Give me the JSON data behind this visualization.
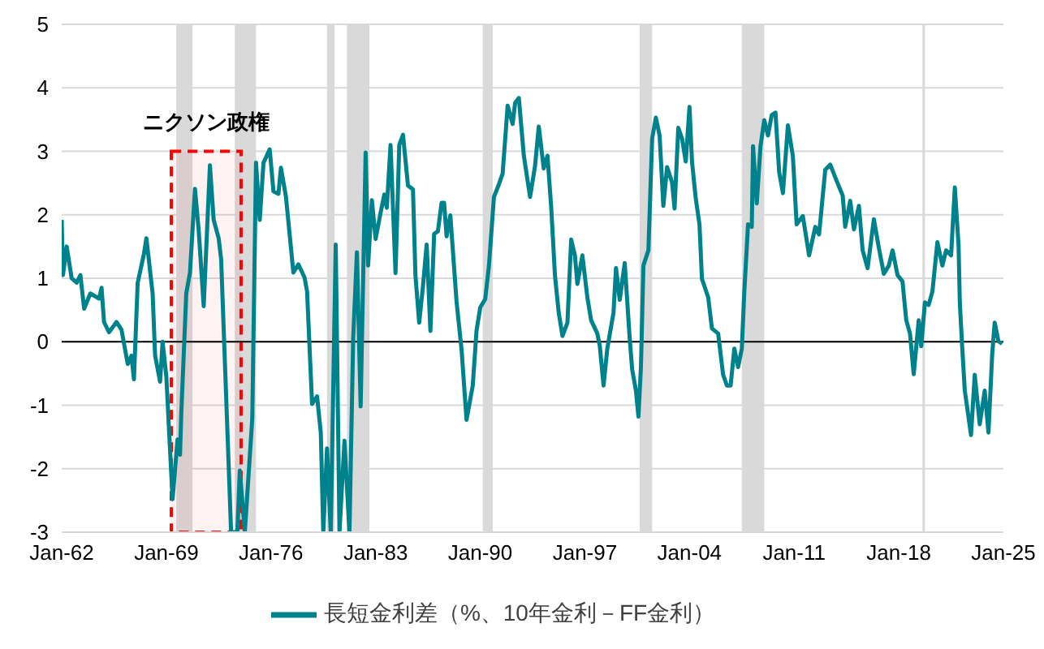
{
  "chart_data": {
    "type": "line",
    "xlim": [
      "1962-01",
      "2025-01"
    ],
    "ylim": [
      -3,
      5
    ],
    "xticks": [
      {
        "value": "1962-01",
        "label": "Jan-62"
      },
      {
        "value": "1969-01",
        "label": "Jan-69"
      },
      {
        "value": "1976-01",
        "label": "Jan-76"
      },
      {
        "value": "1983-01",
        "label": "Jan-83"
      },
      {
        "value": "1990-01",
        "label": "Jan-90"
      },
      {
        "value": "1997-01",
        "label": "Jan-97"
      },
      {
        "value": "2004-01",
        "label": "Jan-04"
      },
      {
        "value": "2011-01",
        "label": "Jan-11"
      },
      {
        "value": "2018-01",
        "label": "Jan-18"
      },
      {
        "value": "2025-01",
        "label": "Jan-25"
      }
    ],
    "yticks": [
      -3,
      -2,
      -1,
      0,
      1,
      2,
      3,
      4,
      5
    ],
    "grid": "y",
    "legend": "bottom",
    "marker": "none",
    "line_style": "solid",
    "ref_lines": [
      {
        "axis": "y",
        "value": 0,
        "color": "#000000"
      }
    ],
    "bands": [
      {
        "axis": "x",
        "from": "1969-09",
        "to": "1970-10",
        "color": "#d9d9d9"
      },
      {
        "axis": "x",
        "from": "1973-08",
        "to": "1975-01",
        "color": "#d9d9d9"
      },
      {
        "axis": "x",
        "from": "1979-10",
        "to": "1980-04",
        "color": "#d9d9d9"
      },
      {
        "axis": "x",
        "from": "1981-02",
        "to": "1982-08",
        "color": "#d9d9d9"
      },
      {
        "axis": "x",
        "from": "1990-03",
        "to": "1990-11",
        "color": "#d9d9d9"
      },
      {
        "axis": "x",
        "from": "2000-09",
        "to": "2001-07",
        "color": "#d9d9d9"
      },
      {
        "axis": "x",
        "from": "2007-07",
        "to": "2009-01",
        "color": "#d9d9d9"
      },
      {
        "axis": "x",
        "from": "2019-08",
        "to": "2019-10",
        "color": "#d9d9d9"
      },
      {
        "axis": "x",
        "from": "1969-05",
        "to": "1974-01",
        "label": "ニクソン政権",
        "color": "#ff0000"
      }
    ],
    "series": [
      {
        "name": "長短金利差（%、10年金利－FF金利）",
        "color": "#00828c",
        "x": [
          "1962-01",
          "1962-02",
          "1962-05",
          "1962-09",
          "1963-01",
          "1963-04",
          "1963-07",
          "1963-12",
          "1964-07",
          "1964-09",
          "1964-11",
          "1965-03",
          "1965-09",
          "1966-01",
          "1966-06",
          "1966-09",
          "1966-11",
          "1967-02",
          "1967-07",
          "1967-09",
          "1968-02",
          "1968-04",
          "1968-08",
          "1968-10",
          "1969-01",
          "1969-06",
          "1969-10",
          "1969-12",
          "1970-01",
          "1970-05",
          "1970-08",
          "1970-12",
          "1971-03",
          "1971-07",
          "1971-12",
          "1972-03",
          "1972-07",
          "1972-09",
          "1973-05",
          "1973-10",
          "1973-12",
          "1974-04",
          "1974-10",
          "1975-01",
          "1975-04",
          "1975-07",
          "1975-12",
          "1976-03",
          "1976-07",
          "1976-09",
          "1977-01",
          "1977-07",
          "1977-11",
          "1978-04",
          "1978-06",
          "1978-10",
          "1979-02",
          "1979-05",
          "1979-07",
          "1979-10",
          "1980-01",
          "1980-05",
          "1980-08",
          "1980-12",
          "1981-04",
          "1981-07",
          "1981-10",
          "1982-01",
          "1982-05",
          "1982-07",
          "1982-10",
          "1983-01",
          "1983-05",
          "1983-08",
          "1983-10",
          "1984-01",
          "1984-05",
          "1984-08",
          "1984-11",
          "1985-03",
          "1985-07",
          "1985-09",
          "1985-12",
          "1986-03",
          "1986-06",
          "1986-09",
          "1986-12",
          "1987-03",
          "1987-06",
          "1987-08",
          "1987-10",
          "1988-01",
          "1988-06",
          "1988-10",
          "1989-02",
          "1989-07",
          "1989-10",
          "1990-01",
          "1990-05",
          "1990-08",
          "1990-12",
          "1991-04",
          "1991-07",
          "1991-11",
          "1992-03",
          "1992-05",
          "1992-08",
          "1992-12",
          "1993-05",
          "1993-09",
          "1993-12",
          "1994-04",
          "1994-07",
          "1994-10",
          "1995-01",
          "1995-04",
          "1995-07",
          "1995-11",
          "1996-02",
          "1996-05",
          "1996-07",
          "1996-11",
          "1997-03",
          "1997-06",
          "1997-11",
          "1998-01",
          "1998-04",
          "1998-07",
          "1998-12",
          "1999-02",
          "1999-05",
          "1999-09",
          "2000-01",
          "2000-03",
          "2000-06",
          "2000-08",
          "2000-10",
          "2000-12",
          "2001-04",
          "2001-07",
          "2001-10",
          "2002-01",
          "2002-04",
          "2002-07",
          "2002-11",
          "2003-01",
          "2003-04",
          "2003-07",
          "2003-10",
          "2004-01",
          "2004-03",
          "2004-06",
          "2004-09",
          "2004-11",
          "2005-04",
          "2005-07",
          "2005-12",
          "2006-04",
          "2006-07",
          "2006-10",
          "2007-01",
          "2007-04",
          "2007-07",
          "2007-09",
          "2007-12",
          "2008-03",
          "2008-04",
          "2008-07",
          "2008-10",
          "2009-01",
          "2009-04",
          "2009-07",
          "2009-10",
          "2010-01",
          "2010-04",
          "2010-08",
          "2010-12",
          "2011-03",
          "2011-08",
          "2012-01",
          "2012-06",
          "2012-09",
          "2013-02",
          "2013-06",
          "2013-10",
          "2014-04",
          "2014-06",
          "2014-10",
          "2015-01",
          "2015-05",
          "2015-08",
          "2015-12",
          "2016-05",
          "2016-09",
          "2017-01",
          "2017-05",
          "2017-08",
          "2017-12",
          "2018-04",
          "2018-07",
          "2018-10",
          "2019-01",
          "2019-05",
          "2019-07",
          "2019-10",
          "2020-01",
          "2020-04",
          "2020-08",
          "2020-12",
          "2021-03",
          "2021-07",
          "2021-10",
          "2022-01",
          "2022-02",
          "2022-04",
          "2022-06",
          "2022-11",
          "2023-02",
          "2023-06",
          "2023-10",
          "2024-01",
          "2024-04",
          "2024-06",
          "2024-09",
          "2024-12"
        ],
        "values": [
          1.92,
          1.05,
          1.5,
          1.0,
          0.93,
          1.05,
          0.52,
          0.76,
          0.68,
          0.85,
          0.31,
          0.15,
          0.31,
          0.19,
          -0.35,
          -0.22,
          -0.59,
          0.93,
          1.38,
          1.63,
          0.76,
          -0.22,
          -0.63,
          0.0,
          -0.55,
          -2.48,
          -1.54,
          -1.78,
          -1.13,
          0.76,
          1.09,
          2.41,
          1.75,
          0.56,
          2.78,
          1.92,
          1.63,
          1.3,
          -3,
          -3,
          -2.03,
          -3,
          -1.21,
          2.82,
          1.92,
          2.82,
          3.03,
          2.37,
          2.33,
          2.74,
          2.29,
          1.09,
          1.22,
          1.01,
          0.79,
          -0.98,
          -0.86,
          -1.43,
          -3,
          -1.68,
          -3,
          1.53,
          -3,
          -1.56,
          -3,
          0.05,
          1.41,
          -1.02,
          2.98,
          1.2,
          2.23,
          1.62,
          2.03,
          2.32,
          2.11,
          3.1,
          1.08,
          3.1,
          3.26,
          2.46,
          2.4,
          1.04,
          0.3,
          0.87,
          1.53,
          0.17,
          1.7,
          1.74,
          2.19,
          2.19,
          1.66,
          1.99,
          0.63,
          -0.12,
          -1.23,
          -0.69,
          0.17,
          0.54,
          0.67,
          1.2,
          2.28,
          2.48,
          2.65,
          3.72,
          3.43,
          3.76,
          3.84,
          2.93,
          2.28,
          2.77,
          3.39,
          2.73,
          2.93,
          2.11,
          1.04,
          0.46,
          0.09,
          0.3,
          1.61,
          1.36,
          0.91,
          1.36,
          0.7,
          0.34,
          0.13,
          -0.07,
          -0.69,
          -0.11,
          0.46,
          1.16,
          0.66,
          1.24,
          0.05,
          -0.44,
          -0.77,
          -1.18,
          -0.4,
          1.2,
          1.44,
          3.2,
          3.53,
          3.25,
          2.14,
          2.75,
          2.51,
          2.1,
          3.37,
          3.2,
          2.84,
          3.7,
          2.84,
          2.26,
          1.85,
          0.99,
          0.7,
          0.21,
          0.13,
          -0.52,
          -0.69,
          -0.69,
          -0.11,
          -0.4,
          -0.11,
          0.79,
          1.85,
          1.81,
          3.08,
          2.18,
          3.08,
          3.49,
          3.25,
          3.57,
          3.61,
          2.67,
          2.34,
          3.41,
          2.92,
          1.85,
          1.98,
          1.36,
          1.81,
          1.69,
          2.71,
          2.79,
          2.59,
          2.3,
          1.81,
          2.22,
          1.77,
          2.14,
          1.44,
          1.16,
          1.93,
          1.48,
          1.07,
          1.2,
          1.44,
          1.05,
          0.95,
          0.34,
          0.13,
          -0.51,
          0.34,
          -0.07,
          0.62,
          0.58,
          0.79,
          1.57,
          1.2,
          1.44,
          1.36,
          2.43,
          1.52,
          0.62,
          -0.11,
          -0.77,
          -1.47,
          -0.52,
          -1.3,
          -0.77,
          -1.43,
          -0.2,
          0.3,
          0.01,
          -0.03
        ]
      }
    ]
  }
}
